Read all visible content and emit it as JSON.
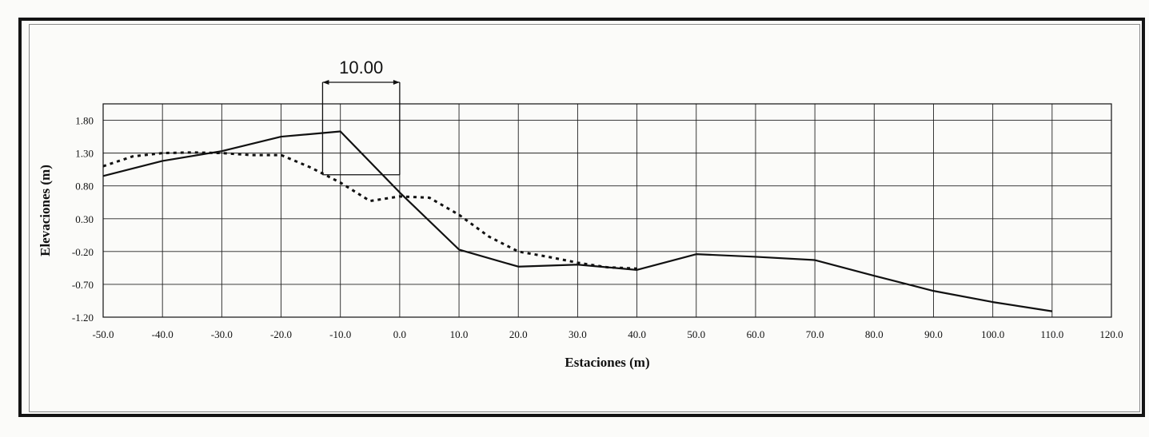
{
  "chart_data": {
    "type": "line",
    "title": "",
    "xlabel": "Estaciones (m)",
    "ylabel": "Elevaciones (m)",
    "xlim": [
      -50,
      120
    ],
    "ylim": [
      -1.2,
      2.05
    ],
    "x_ticks": [
      -50,
      -40,
      -30,
      -20,
      -10,
      0,
      10,
      20,
      30,
      40,
      50,
      60,
      70,
      80,
      90,
      100,
      110,
      120
    ],
    "x_tick_labels": [
      "-50.0",
      "-40.0",
      "-30.0",
      "-20.0",
      "-10.0",
      "0.0",
      "10.0",
      "20.0",
      "30.0",
      "40.0",
      "50.0",
      "60.0",
      "70.0",
      "80.0",
      "90.0",
      "100.0",
      "110.0",
      "120.0"
    ],
    "y_ticks": [
      1.8,
      1.3,
      0.8,
      0.3,
      -0.2,
      -0.7,
      -1.2
    ],
    "y_tick_labels": [
      "1.80",
      "1.30",
      "0.80",
      "0.30",
      "-0.20",
      "-0.70",
      "-1.20"
    ],
    "grid": true,
    "series": [
      {
        "style": "solid",
        "color": "#111111",
        "x": [
          -50,
          -40,
          -30,
          -20,
          -10,
          0,
          10,
          20,
          30,
          40,
          50,
          60,
          70,
          80,
          90,
          100,
          110
        ],
        "y": [
          0.95,
          1.18,
          1.33,
          1.55,
          1.63,
          0.7,
          -0.17,
          -0.43,
          -0.4,
          -0.48,
          -0.24,
          -0.28,
          -0.33,
          -0.57,
          -0.8,
          -0.97,
          -1.11
        ]
      },
      {
        "style": "dotted",
        "color": "#111111",
        "x": [
          -50,
          -45,
          -40,
          -35,
          -30,
          -25,
          -20,
          -15,
          -10,
          -5,
          0,
          5,
          10,
          15,
          20,
          25,
          30,
          35,
          40
        ],
        "y": [
          1.1,
          1.25,
          1.3,
          1.31,
          1.3,
          1.27,
          1.27,
          1.08,
          0.85,
          0.57,
          0.64,
          0.62,
          0.36,
          0.03,
          -0.2,
          -0.28,
          -0.37,
          -0.44,
          -0.46
        ]
      }
    ],
    "annotation": {
      "label": "10.00",
      "from_x": -13,
      "to_x": 0,
      "box_y": [
        0.97,
        2.05
      ]
    }
  }
}
